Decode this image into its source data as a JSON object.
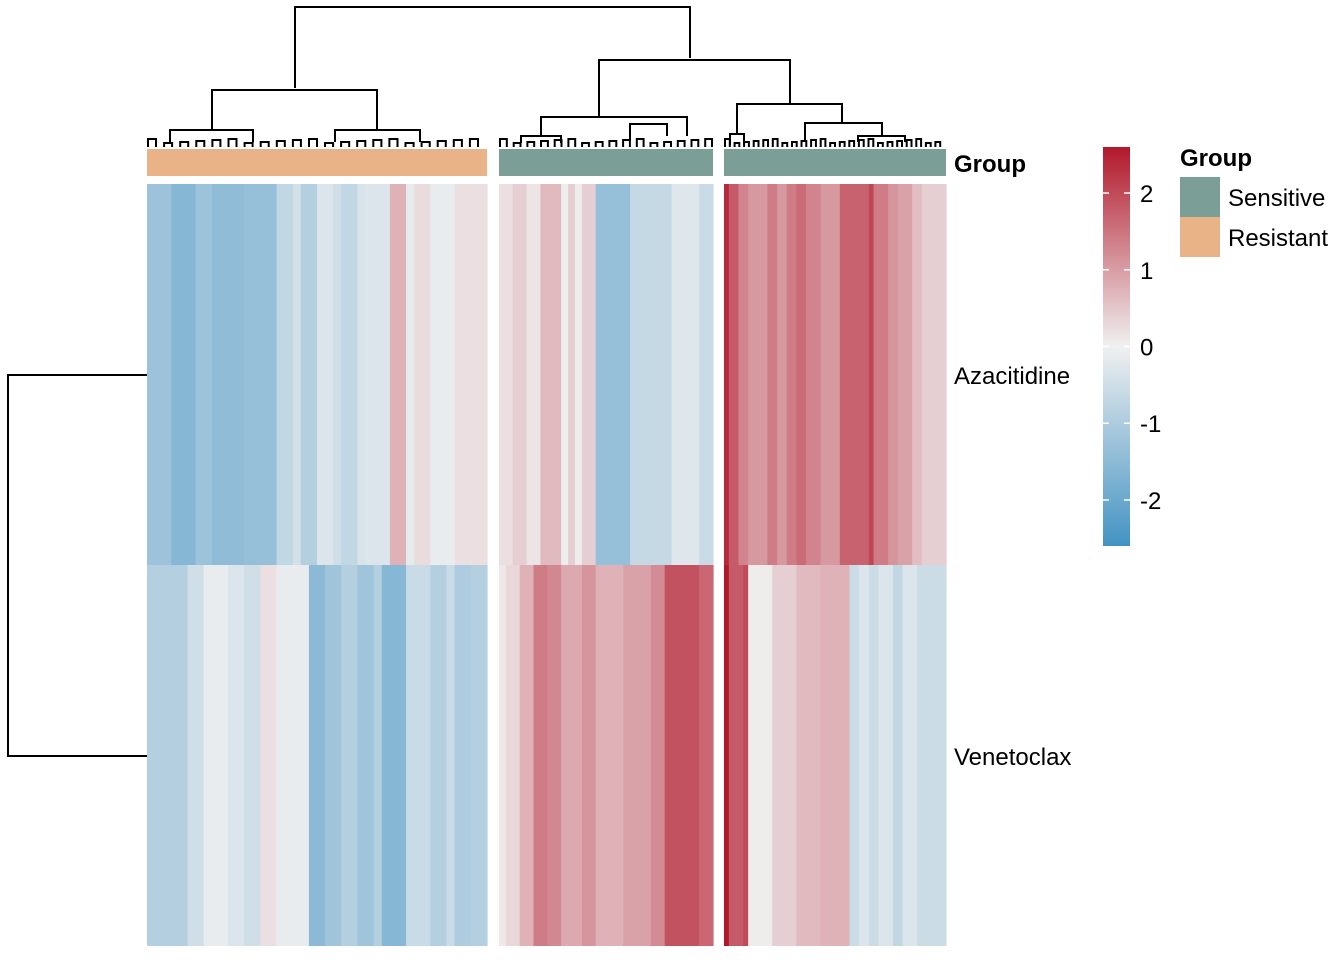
{
  "chart_data": {
    "type": "heatmap",
    "rows": [
      "Azacitidine",
      "Venetoclax"
    ],
    "column_annotation": {
      "name": "Group",
      "levels": [
        {
          "label": "Sensitive",
          "color": "#7B9E96"
        },
        {
          "label": "Resistant",
          "color": "#EAB287"
        }
      ]
    },
    "color_scale": {
      "title": "",
      "min": -2.6,
      "max": 2.6,
      "ticks": [
        "2",
        "1",
        "0",
        "-1",
        "-2"
      ],
      "tick_values": [
        2,
        1,
        0,
        -1,
        -2
      ],
      "low_color": "#4393C3",
      "mid_color": "#F0F0F0",
      "high_color": "#B2182B"
    },
    "slices": [
      {
        "group": "Resistant",
        "values": [
          [
            -1.25,
            -1.25,
            -1.25,
            -1.6,
            -1.6,
            -1.6,
            -1.25,
            -1.25,
            -1.45,
            -1.45,
            -1.45,
            -1.45,
            -1.35,
            -1.35,
            -1.35,
            -1.35,
            -0.7,
            -0.7,
            -0.45,
            -0.9,
            -0.9,
            -0.3,
            -0.3,
            -0.5,
            -0.7,
            -0.7,
            -0.35,
            -0.3,
            -0.3,
            -0.3,
            0.75,
            0.75,
            -0.15,
            0.25,
            0.25,
            -0.1,
            -0.1,
            -0.1,
            0.2,
            0.2,
            0.2,
            0.2
          ],
          [
            -0.9,
            -0.9,
            -0.9,
            -0.9,
            -0.9,
            -0.5,
            -0.5,
            -0.1,
            -0.1,
            -0.1,
            -0.3,
            -0.3,
            -0.5,
            -0.5,
            0.2,
            0.2,
            -0.1,
            -0.1,
            -0.1,
            -0.1,
            -1.5,
            -1.5,
            -1.2,
            -1.2,
            -0.9,
            -0.9,
            -1.2,
            -1.2,
            -0.9,
            -1.6,
            -1.6,
            -1.6,
            -0.6,
            -0.6,
            -0.6,
            -0.9,
            -0.9,
            -0.6,
            -1.0,
            -1.0,
            -0.9,
            -0.9
          ]
        ]
      },
      {
        "group": "Sensitive",
        "values": [
          [
            0.2,
            0.2,
            0.4,
            0.4,
            0.15,
            0.15,
            0.65,
            0.65,
            0.65,
            -0.05,
            0.4,
            0.05,
            0.4,
            0.4,
            -1.35,
            -1.35,
            -1.35,
            -1.35,
            -1.35,
            -0.65,
            -0.65,
            -0.65,
            -0.65,
            -0.65,
            -0.65,
            -0.25,
            -0.25,
            -0.25,
            -0.25,
            -0.6,
            -0.6
          ],
          [
            0.1,
            0.3,
            0.3,
            0.75,
            0.75,
            1.4,
            1.4,
            1.25,
            1.25,
            0.85,
            0.85,
            0.85,
            1.1,
            1.1,
            0.75,
            0.75,
            0.75,
            0.75,
            0.95,
            0.95,
            0.95,
            0.95,
            1.2,
            1.2,
            1.9,
            1.9,
            1.9,
            1.9,
            1.9,
            1.65,
            1.65
          ]
        ]
      },
      {
        "group": "Sensitive",
        "values": [
          [
            2.4,
            1.8,
            1.8,
            1.3,
            1.3,
            1.05,
            1.05,
            1.05,
            1.05,
            1.4,
            1.4,
            1.05,
            1.05,
            1.4,
            1.4,
            1.6,
            1.6,
            1.3,
            1.3,
            1.3,
            1.05,
            1.05,
            1.05,
            1.05,
            1.7,
            1.7,
            1.7,
            1.7,
            1.7,
            1.7,
            2.05,
            1.4,
            1.4,
            1.4,
            1.1,
            1.1,
            0.95,
            0.95,
            0.95,
            0.6,
            0.6,
            0.4,
            0.4,
            0.4,
            0.4,
            0.4
          ],
          [
            2.6,
            1.8,
            1.8,
            1.8,
            2.0,
            0.05,
            0.05,
            0.05,
            0.05,
            0.05,
            0.4,
            0.4,
            0.4,
            0.4,
            0.4,
            0.65,
            0.65,
            0.65,
            0.65,
            0.65,
            0.75,
            0.75,
            0.75,
            0.75,
            0.75,
            0.75,
            -0.55,
            -0.55,
            -0.3,
            -0.3,
            -0.55,
            -0.55,
            -0.3,
            -0.3,
            -0.3,
            -0.7,
            -0.7,
            -0.3,
            -0.3,
            -0.3,
            -0.55,
            -0.55,
            -0.55,
            -0.55,
            -0.55,
            -0.55
          ]
        ]
      }
    ]
  }
}
